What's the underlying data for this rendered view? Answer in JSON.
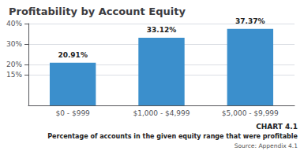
{
  "chart_data": {
    "type": "bar",
    "title": "Profitability by Account Equity",
    "subtitle": "Percentage of accounts in the given equity range that were profitable",
    "annotations": [
      "CHART 4.1",
      "Source: Appendix 4.1"
    ],
    "categories": [
      "$0 - $999",
      "$1,000 - $4,999",
      "$5,000 - $9,999"
    ],
    "values": [
      20.91,
      33.12,
      37.37
    ],
    "value_labels": [
      "20.91%",
      "33.12%",
      "37.37%"
    ],
    "data_labels": true,
    "color": "#3B8FCC",
    "ylim": [
      0,
      40
    ],
    "yticks": [
      {
        "value": 15,
        "label": "15%"
      },
      {
        "value": 20,
        "label": "20%"
      },
      {
        "value": 30,
        "label": "30%"
      },
      {
        "value": 40,
        "label": "40%"
      }
    ],
    "grid": true
  }
}
